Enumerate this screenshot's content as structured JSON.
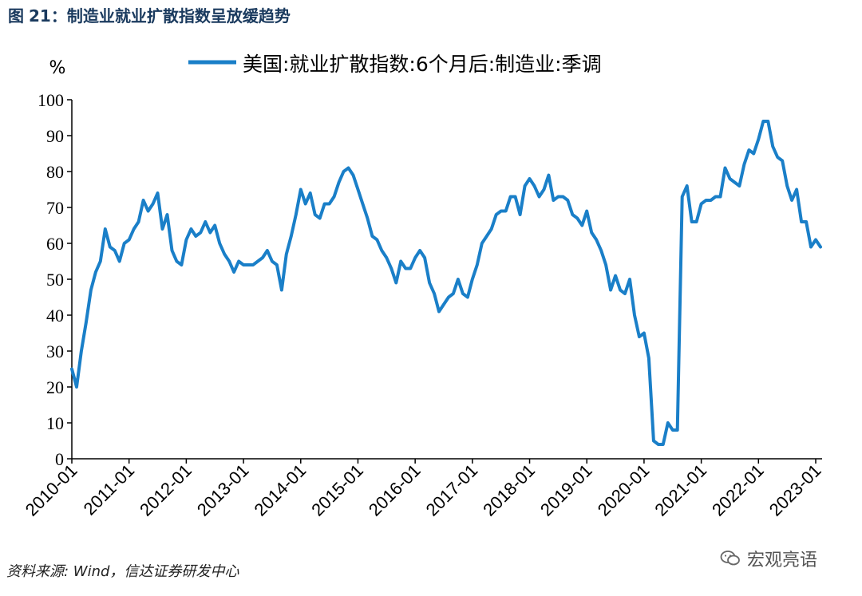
{
  "figure": {
    "label": "图",
    "number": "21：",
    "title": "制造业就业扩散指数呈放缓趋势"
  },
  "source_text": "资料来源: Wind，信达证券研发中心",
  "watermark": {
    "text": "宏观亮语",
    "icon": "wechat-icon"
  },
  "colors": {
    "line": "#1a7fc8",
    "axis": "#000000",
    "title": "#1a3a5e"
  },
  "chart_data": {
    "type": "line",
    "y_unit_label": "%",
    "ylim": [
      0,
      100
    ],
    "y_ticks": [
      0,
      10,
      20,
      30,
      40,
      50,
      60,
      70,
      80,
      90,
      100
    ],
    "x_ticks": [
      "2010-01",
      "2011-01",
      "2012-01",
      "2013-01",
      "2014-01",
      "2015-01",
      "2016-01",
      "2017-01",
      "2018-01",
      "2019-01",
      "2020-01",
      "2021-01",
      "2022-01",
      "2023-01"
    ],
    "grid": false,
    "legend_position": "top",
    "series": [
      {
        "name": "美国:就业扩散指数:6个月后:制造业:季调",
        "x": [
          "2010-01",
          "2010-02",
          "2010-03",
          "2010-04",
          "2010-05",
          "2010-06",
          "2010-07",
          "2010-08",
          "2010-09",
          "2010-10",
          "2010-11",
          "2010-12",
          "2011-01",
          "2011-02",
          "2011-03",
          "2011-04",
          "2011-05",
          "2011-06",
          "2011-07",
          "2011-08",
          "2011-09",
          "2011-10",
          "2011-11",
          "2011-12",
          "2012-01",
          "2012-02",
          "2012-03",
          "2012-04",
          "2012-05",
          "2012-06",
          "2012-07",
          "2012-08",
          "2012-09",
          "2012-10",
          "2012-11",
          "2012-12",
          "2013-01",
          "2013-02",
          "2013-03",
          "2013-04",
          "2013-05",
          "2013-06",
          "2013-07",
          "2013-08",
          "2013-09",
          "2013-10",
          "2013-11",
          "2013-12",
          "2014-01",
          "2014-02",
          "2014-03",
          "2014-04",
          "2014-05",
          "2014-06",
          "2014-07",
          "2014-08",
          "2014-09",
          "2014-10",
          "2014-11",
          "2014-12",
          "2015-01",
          "2015-02",
          "2015-03",
          "2015-04",
          "2015-05",
          "2015-06",
          "2015-07",
          "2015-08",
          "2015-09",
          "2015-10",
          "2015-11",
          "2015-12",
          "2016-01",
          "2016-02",
          "2016-03",
          "2016-04",
          "2016-05",
          "2016-06",
          "2016-07",
          "2016-08",
          "2016-09",
          "2016-10",
          "2016-11",
          "2016-12",
          "2017-01",
          "2017-02",
          "2017-03",
          "2017-04",
          "2017-05",
          "2017-06",
          "2017-07",
          "2017-08",
          "2017-09",
          "2017-10",
          "2017-11",
          "2017-12",
          "2018-01",
          "2018-02",
          "2018-03",
          "2018-04",
          "2018-05",
          "2018-06",
          "2018-07",
          "2018-08",
          "2018-09",
          "2018-10",
          "2018-11",
          "2018-12",
          "2019-01",
          "2019-02",
          "2019-03",
          "2019-04",
          "2019-05",
          "2019-06",
          "2019-07",
          "2019-08",
          "2019-09",
          "2019-10",
          "2019-11",
          "2019-12",
          "2020-01",
          "2020-02",
          "2020-03",
          "2020-04",
          "2020-05",
          "2020-06",
          "2020-07",
          "2020-08",
          "2020-09",
          "2020-10",
          "2020-11",
          "2020-12",
          "2021-01",
          "2021-02",
          "2021-03",
          "2021-04",
          "2021-05",
          "2021-06",
          "2021-07",
          "2021-08",
          "2021-09",
          "2021-10",
          "2021-11",
          "2021-12",
          "2022-01",
          "2022-02",
          "2022-03",
          "2022-04",
          "2022-05",
          "2022-06",
          "2022-07",
          "2022-08",
          "2022-09",
          "2022-10",
          "2022-11",
          "2022-12",
          "2023-01",
          "2023-02"
        ],
        "values": [
          25,
          20,
          30,
          38,
          47,
          52,
          55,
          64,
          59,
          58,
          55,
          60,
          61,
          64,
          66,
          72,
          69,
          71,
          74,
          64,
          68,
          58,
          55,
          54,
          61,
          64,
          62,
          63,
          66,
          63,
          65,
          60,
          57,
          55,
          52,
          55,
          54,
          54,
          54,
          55,
          56,
          58,
          55,
          54,
          47,
          57,
          62,
          68,
          75,
          71,
          74,
          68,
          67,
          71,
          71,
          73,
          77,
          80,
          81,
          79,
          75,
          71,
          67,
          62,
          61,
          58,
          56,
          53,
          49,
          55,
          53,
          53,
          56,
          58,
          56,
          49,
          46,
          41,
          43,
          45,
          46,
          50,
          46,
          45,
          50,
          54,
          60,
          62,
          64,
          68,
          69,
          69,
          73,
          73,
          68,
          76,
          78,
          76,
          73,
          75,
          79,
          72,
          73,
          73,
          72,
          68,
          67,
          65,
          69,
          63,
          61,
          58,
          54,
          47,
          51,
          47,
          46,
          50,
          40,
          34,
          35,
          28,
          5,
          4,
          4,
          10,
          8,
          8,
          73,
          76,
          66,
          66,
          71,
          72,
          72,
          73,
          73,
          81,
          78,
          77,
          76,
          82,
          86,
          85,
          89,
          94,
          94,
          87,
          84,
          83,
          76,
          72,
          75,
          66,
          66,
          59,
          61,
          59
        ]
      }
    ]
  }
}
